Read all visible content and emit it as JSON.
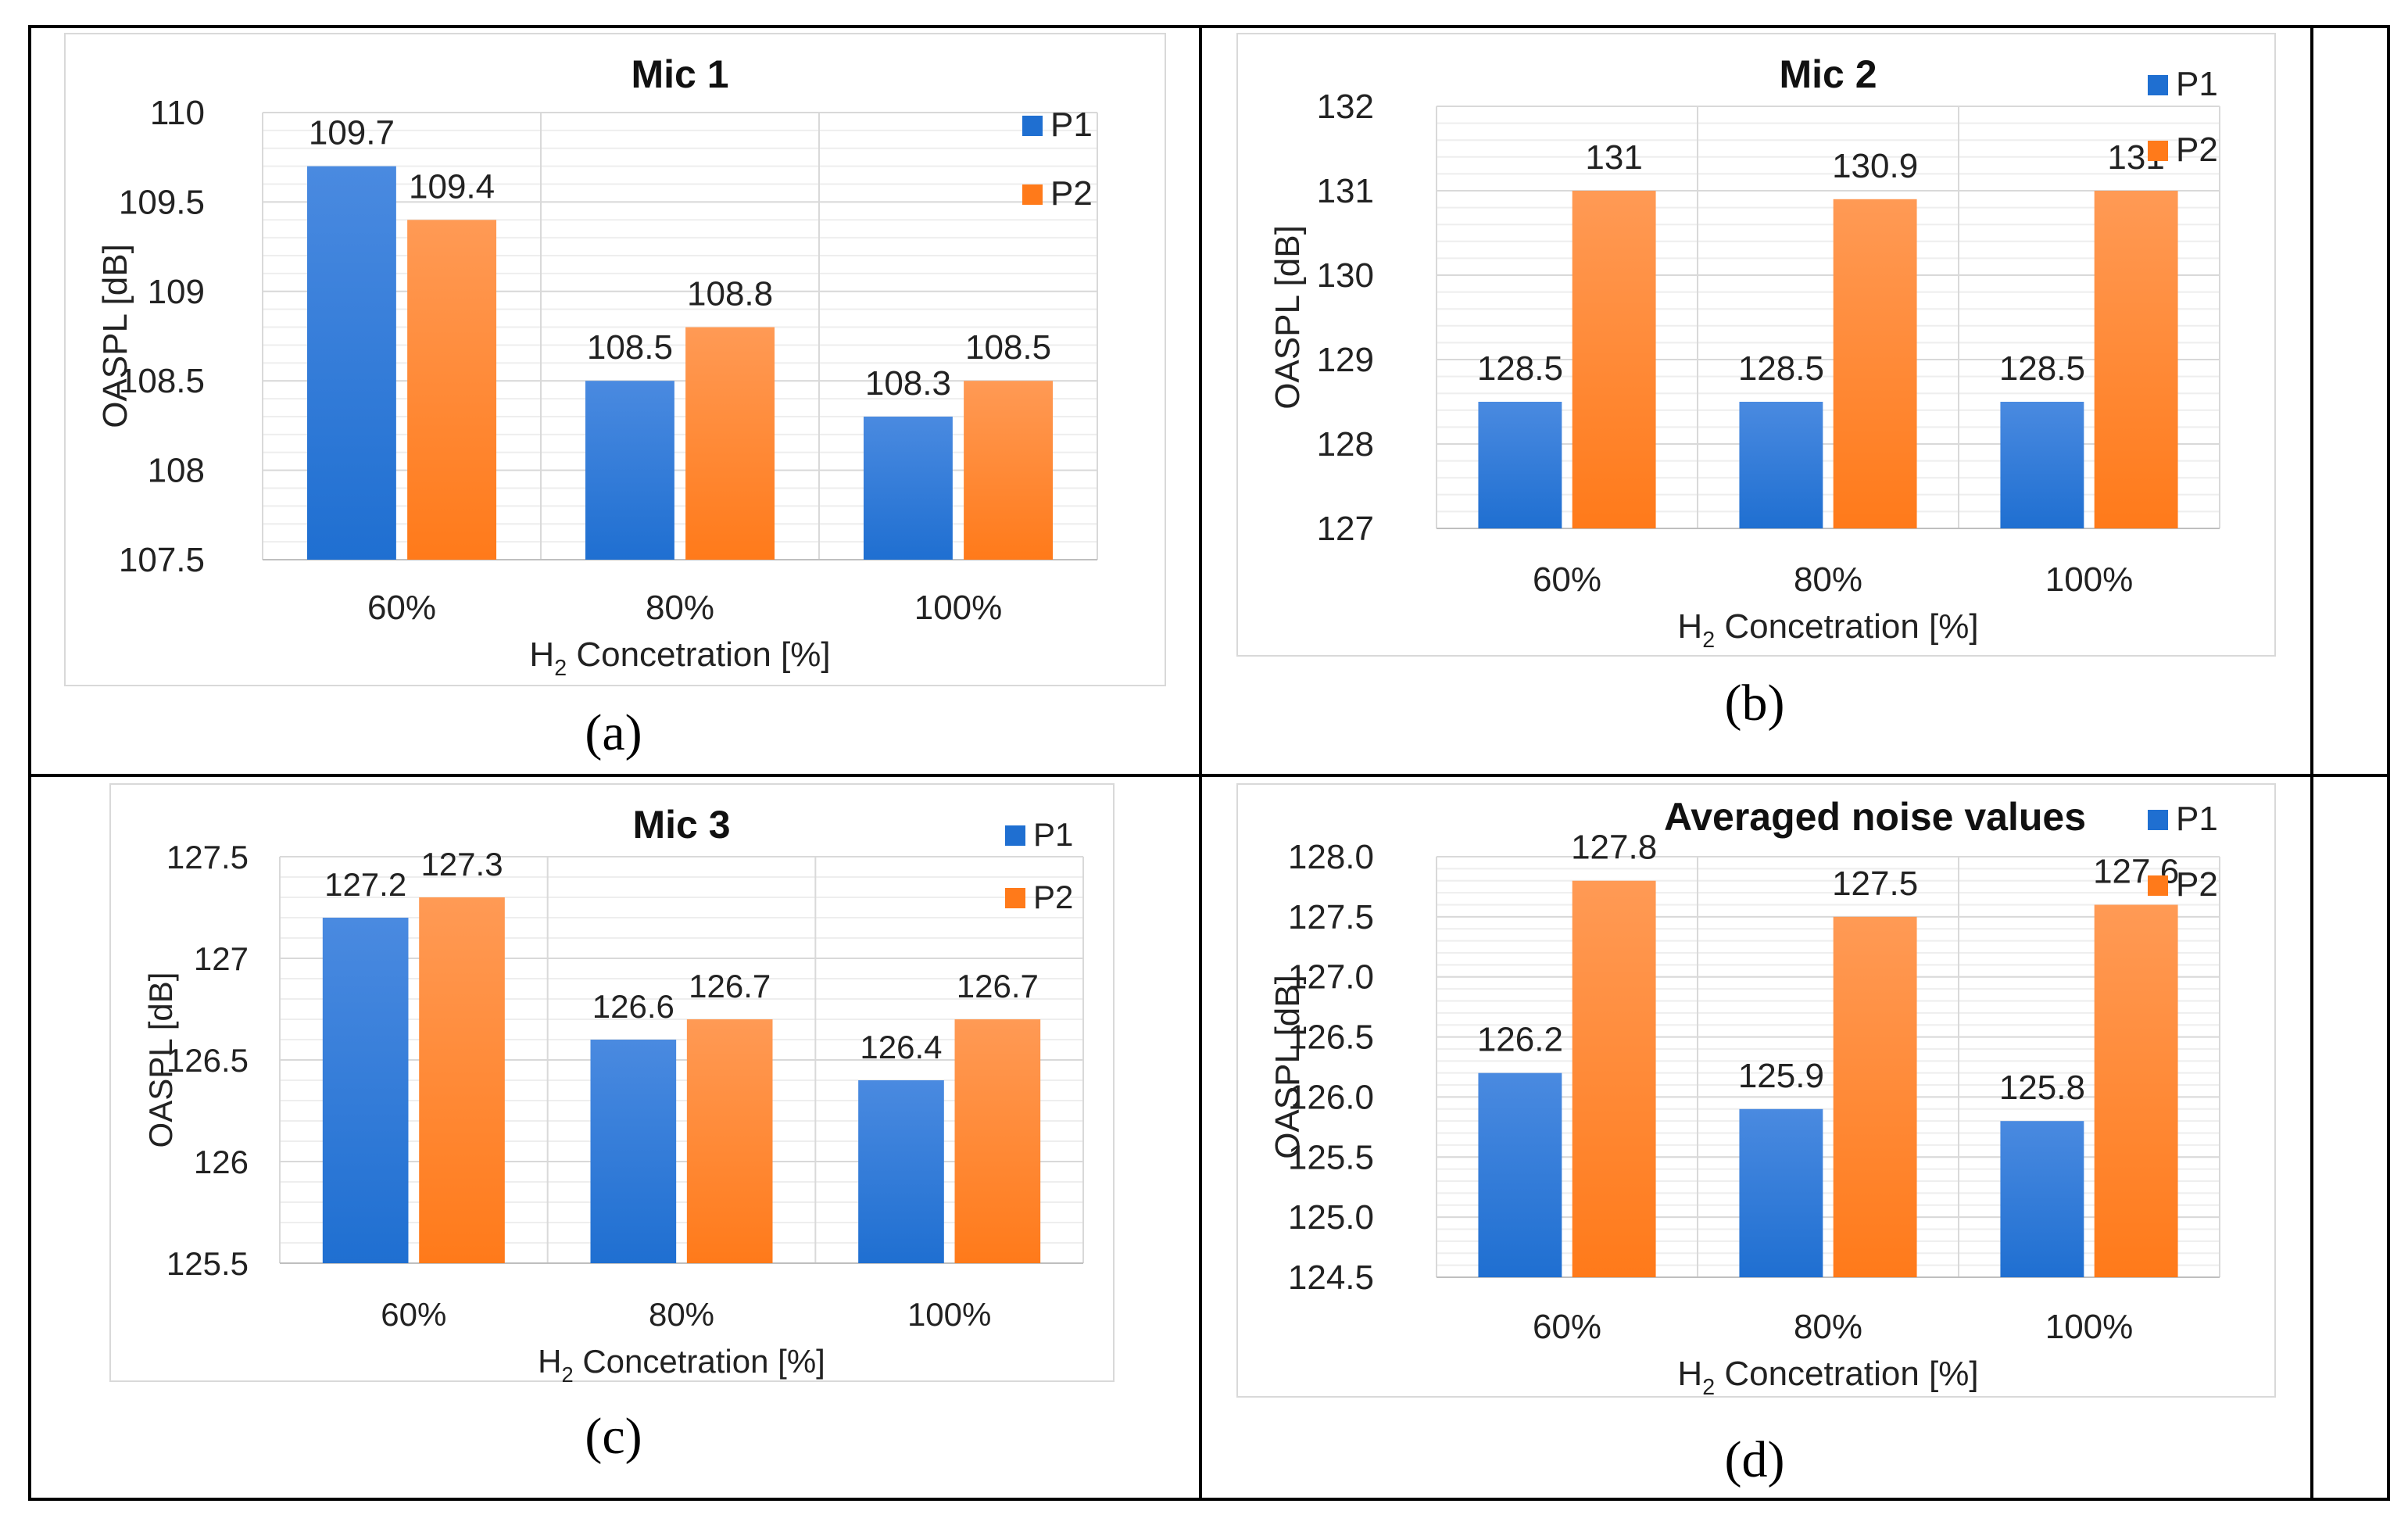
{
  "colors": {
    "p1": "#1f6fd1",
    "p2": "#ff7a1a",
    "grid": "#d9d9d9",
    "axis": "#bfbfbf"
  },
  "panels": [
    {
      "caption": "(a)"
    },
    {
      "caption": "(b)"
    },
    {
      "caption": "(c)"
    },
    {
      "caption": "(d)"
    }
  ],
  "chart_data": [
    {
      "type": "bar",
      "title": "Mic 1",
      "ylabel": "OASPL [dB]",
      "xlabel_main": "H",
      "xlabel_sub": "2",
      "xlabel_rest": " Concetration [%]",
      "categories": [
        "60%",
        "80%",
        "100%"
      ],
      "ylim": [
        107.5,
        110
      ],
      "yticks": [
        107.5,
        108,
        108.5,
        109,
        109.5,
        110
      ],
      "ytick_labels": [
        "107.5",
        "108",
        "108.5",
        "109",
        "109.5",
        "110"
      ],
      "series": [
        {
          "name": "P1",
          "values": [
            109.7,
            108.5,
            108.3
          ],
          "labels": [
            "109.7",
            "108.5",
            "108.3"
          ]
        },
        {
          "name": "P2",
          "values": [
            109.4,
            108.8,
            108.5
          ],
          "labels": [
            "109.4",
            "108.8",
            "108.5"
          ]
        }
      ],
      "legend_position": "top-right"
    },
    {
      "type": "bar",
      "title": "Mic 2",
      "ylabel": "OASPL [dB]",
      "xlabel_main": "H",
      "xlabel_sub": "2",
      "xlabel_rest": " Concetration [%]",
      "categories": [
        "60%",
        "80%",
        "100%"
      ],
      "ylim": [
        127,
        132
      ],
      "yticks": [
        127,
        128,
        129,
        130,
        131,
        132
      ],
      "ytick_labels": [
        "127",
        "128",
        "129",
        "130",
        "131",
        "132"
      ],
      "series": [
        {
          "name": "P1",
          "values": [
            128.5,
            128.5,
            128.5
          ],
          "labels": [
            "128.5",
            "128.5",
            "128.5"
          ]
        },
        {
          "name": "P2",
          "values": [
            131,
            130.9,
            131
          ],
          "labels": [
            "131",
            "130.9",
            "131"
          ]
        }
      ],
      "legend_position": "top-right"
    },
    {
      "type": "bar",
      "title": "Mic 3",
      "ylabel": "OASPL [dB]",
      "xlabel_main": "H",
      "xlabel_sub": "2",
      "xlabel_rest": " Concetration [%]",
      "categories": [
        "60%",
        "80%",
        "100%"
      ],
      "ylim": [
        125.5,
        127.5
      ],
      "yticks": [
        125.5,
        126,
        126.5,
        127,
        127.5
      ],
      "ytick_labels": [
        "125.5",
        "126",
        "126.5",
        "127",
        "127.5"
      ],
      "series": [
        {
          "name": "P1",
          "values": [
            127.2,
            126.6,
            126.4
          ],
          "labels": [
            "127.2",
            "126.6",
            "126.4"
          ]
        },
        {
          "name": "P2",
          "values": [
            127.3,
            126.7,
            126.7
          ],
          "labels": [
            "127.3",
            "126.7",
            "126.7"
          ]
        }
      ],
      "legend_position": "top-right"
    },
    {
      "type": "bar",
      "title": "Averaged noise values",
      "ylabel": "OASPL [dB]",
      "xlabel_main": "H",
      "xlabel_sub": "2",
      "xlabel_rest": " Concetration [%]",
      "categories": [
        "60%",
        "80%",
        "100%"
      ],
      "ylim": [
        124.5,
        128
      ],
      "yticks": [
        124.5,
        125,
        125.5,
        126,
        126.5,
        127,
        127.5,
        128
      ],
      "ytick_labels": [
        "124.5",
        "125.0",
        "125.5",
        "126.0",
        "126.5",
        "127.0",
        "127.5",
        "128.0"
      ],
      "series": [
        {
          "name": "P1",
          "values": [
            126.2,
            125.9,
            125.8
          ],
          "labels": [
            "126.2",
            "125.9",
            "125.8"
          ]
        },
        {
          "name": "P2",
          "values": [
            127.8,
            127.5,
            127.6
          ],
          "labels": [
            "127.8",
            "127.5",
            "127.6"
          ]
        }
      ],
      "legend_position": "top-right"
    }
  ]
}
